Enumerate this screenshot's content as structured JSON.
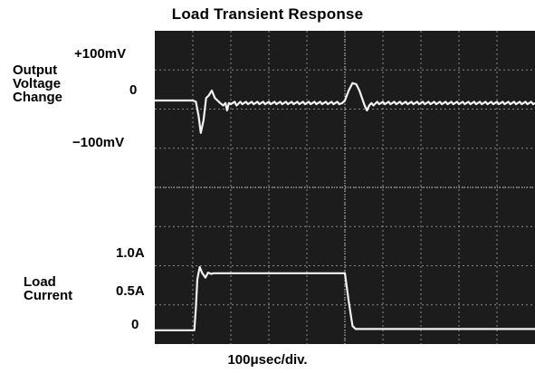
{
  "chart_data": {
    "type": "line",
    "title": "Load Transient Response",
    "x_scale_label": "100μsec/div.",
    "x": {
      "unit": "μs",
      "range": [
        0,
        1000
      ],
      "per_division": 100
    },
    "channels": [
      {
        "label": "Output\nVoltage\nChange",
        "unit": "mV",
        "range": [
          -200,
          200
        ],
        "tick_labels": [
          {
            "value": 100,
            "text": "+100mV"
          },
          {
            "value": 0,
            "text": "0"
          },
          {
            "value": -100,
            "text": "−100mV"
          }
        ],
        "points": [
          [
            0,
            0
          ],
          [
            100,
            0
          ],
          [
            108,
            -5
          ],
          [
            115,
            -60
          ],
          [
            121,
            -130
          ],
          [
            128,
            -80
          ],
          [
            135,
            10
          ],
          [
            142,
            20
          ],
          [
            150,
            40
          ],
          [
            158,
            10
          ],
          [
            165,
            0
          ],
          [
            172,
            -10
          ],
          [
            180,
            -20
          ],
          [
            186,
            -10
          ],
          [
            190,
            -40
          ],
          [
            195,
            -10
          ],
          [
            200,
            -15
          ],
          [
            210,
            -5
          ],
          [
            215,
            -20
          ],
          [
            225,
            -5
          ],
          [
            230,
            -15
          ],
          [
            240,
            -5
          ],
          [
            245,
            -15
          ],
          [
            255,
            -5
          ],
          [
            260,
            -15
          ],
          [
            270,
            -5
          ],
          [
            275,
            -15
          ],
          [
            285,
            -5
          ],
          [
            290,
            -15
          ],
          [
            300,
            -5
          ],
          [
            305,
            -15
          ],
          [
            315,
            -5
          ],
          [
            320,
            -15
          ],
          [
            330,
            -5
          ],
          [
            335,
            -15
          ],
          [
            345,
            -5
          ],
          [
            350,
            -15
          ],
          [
            360,
            -5
          ],
          [
            365,
            -15
          ],
          [
            375,
            -5
          ],
          [
            380,
            -15
          ],
          [
            390,
            -5
          ],
          [
            395,
            -15
          ],
          [
            405,
            -5
          ],
          [
            410,
            -15
          ],
          [
            420,
            -5
          ],
          [
            425,
            -15
          ],
          [
            435,
            -5
          ],
          [
            440,
            -15
          ],
          [
            450,
            -5
          ],
          [
            455,
            -15
          ],
          [
            465,
            -5
          ],
          [
            470,
            -15
          ],
          [
            480,
            -5
          ],
          [
            485,
            -15
          ],
          [
            493,
            -10
          ],
          [
            500,
            0
          ],
          [
            510,
            40
          ],
          [
            520,
            70
          ],
          [
            530,
            65
          ],
          [
            538,
            40
          ],
          [
            545,
            10
          ],
          [
            552,
            -20
          ],
          [
            558,
            -40
          ],
          [
            564,
            -20
          ],
          [
            570,
            -10
          ],
          [
            575,
            -20
          ],
          [
            585,
            -5
          ],
          [
            590,
            -15
          ],
          [
            600,
            -5
          ],
          [
            605,
            -15
          ],
          [
            615,
            -5
          ],
          [
            620,
            -15
          ],
          [
            630,
            -5
          ],
          [
            635,
            -15
          ],
          [
            645,
            -5
          ],
          [
            650,
            -15
          ],
          [
            660,
            -5
          ],
          [
            665,
            -15
          ],
          [
            675,
            -5
          ],
          [
            680,
            -15
          ],
          [
            690,
            -5
          ],
          [
            695,
            -15
          ],
          [
            705,
            -5
          ],
          [
            710,
            -15
          ],
          [
            720,
            -5
          ],
          [
            725,
            -15
          ],
          [
            735,
            -5
          ],
          [
            740,
            -15
          ],
          [
            750,
            -5
          ],
          [
            755,
            -15
          ],
          [
            765,
            -5
          ],
          [
            770,
            -15
          ],
          [
            780,
            -5
          ],
          [
            785,
            -15
          ],
          [
            795,
            -5
          ],
          [
            800,
            -15
          ],
          [
            810,
            -5
          ],
          [
            815,
            -15
          ],
          [
            825,
            -5
          ],
          [
            830,
            -15
          ],
          [
            840,
            -5
          ],
          [
            845,
            -15
          ],
          [
            855,
            -5
          ],
          [
            860,
            -15
          ],
          [
            870,
            -5
          ],
          [
            875,
            -15
          ],
          [
            885,
            -5
          ],
          [
            890,
            -15
          ],
          [
            900,
            -5
          ],
          [
            905,
            -15
          ],
          [
            915,
            -5
          ],
          [
            920,
            -15
          ],
          [
            930,
            -5
          ],
          [
            935,
            -15
          ],
          [
            945,
            -5
          ],
          [
            950,
            -15
          ],
          [
            960,
            -5
          ],
          [
            965,
            -15
          ],
          [
            975,
            -5
          ],
          [
            980,
            -15
          ],
          [
            990,
            -5
          ],
          [
            995,
            -15
          ],
          [
            1000,
            -10
          ]
        ]
      },
      {
        "label": "Load\nCurrent",
        "unit": "A",
        "range": [
          -0.25,
          1.75
        ],
        "tick_labels": [
          {
            "value": 1.0,
            "text": "1.0A"
          },
          {
            "value": 0.5,
            "text": "0.5A"
          },
          {
            "value": 0,
            "text": "0"
          }
        ],
        "points": [
          [
            0,
            0.03
          ],
          [
            104,
            0.03
          ],
          [
            108,
            0.4
          ],
          [
            112,
            0.85
          ],
          [
            118,
            1.05
          ],
          [
            125,
            0.95
          ],
          [
            133,
            0.88
          ],
          [
            140,
            0.96
          ],
          [
            148,
            0.94
          ],
          [
            155,
            0.95
          ],
          [
            500,
            0.95
          ],
          [
            510,
            0.5
          ],
          [
            520,
            0.1
          ],
          [
            528,
            0.05
          ],
          [
            540,
            0.05
          ],
          [
            600,
            0.05
          ],
          [
            1000,
            0.05
          ]
        ]
      }
    ],
    "grid": {
      "on": true,
      "x_divisions": 10,
      "y_divisions": 8
    }
  }
}
